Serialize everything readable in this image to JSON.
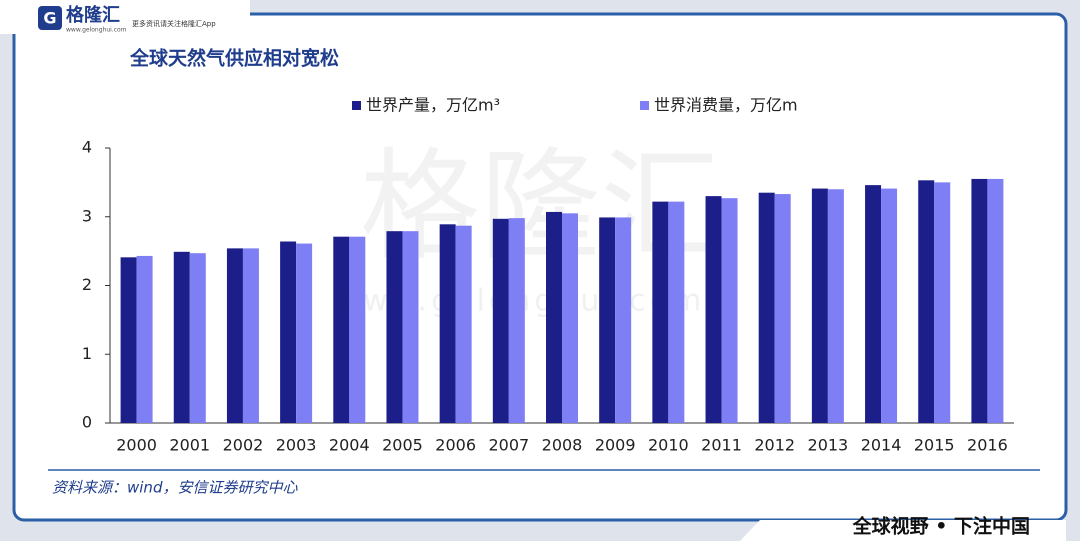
{
  "header": {
    "logo": "格隆汇",
    "site": "www.gelonghui.com",
    "slogan": "更多资讯请关注格隆汇App"
  },
  "watermark": {
    "brand": "格隆汇",
    "site": "www.gelonghui.com"
  },
  "chart_data": {
    "type": "bar",
    "title": "全球天然气供应相对宽松",
    "categories": [
      "2000",
      "2001",
      "2002",
      "2003",
      "2004",
      "2005",
      "2006",
      "2007",
      "2008",
      "2009",
      "2010",
      "2011",
      "2012",
      "2013",
      "2014",
      "2015",
      "2016"
    ],
    "series": [
      {
        "name": "世界产量，万亿m³",
        "color": "#1c1f8a",
        "values": [
          2.41,
          2.49,
          2.54,
          2.64,
          2.71,
          2.79,
          2.89,
          2.97,
          3.07,
          2.99,
          3.22,
          3.3,
          3.35,
          3.41,
          3.46,
          3.53,
          3.55
        ]
      },
      {
        "name": "世界消费量，万亿m",
        "color": "#7f7ff5",
        "values": [
          2.43,
          2.47,
          2.54,
          2.61,
          2.71,
          2.79,
          2.87,
          2.98,
          3.05,
          2.99,
          3.22,
          3.27,
          3.33,
          3.4,
          3.41,
          3.5,
          3.55
        ]
      }
    ],
    "ylim": [
      0,
      4
    ],
    "yticks": [
      0,
      1,
      2,
      3,
      4
    ],
    "grid": false,
    "legend": "top"
  },
  "source": "资料来源：wind，安信证券研究中心",
  "footer": "全球视野 • 下注中国"
}
